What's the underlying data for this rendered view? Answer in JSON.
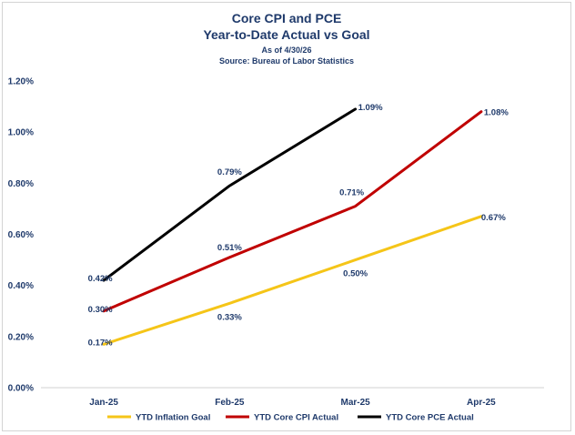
{
  "chart_data": {
    "type": "line",
    "title": "Core CPI and PCE",
    "subtitle": "Year-to-Date Actual vs Goal",
    "note_lines": [
      "As of 4/30/26",
      "Source: Bureau of Labor Statistics"
    ],
    "categories": [
      "Jan-25",
      "Feb-25",
      "Mar-25",
      "Apr-25"
    ],
    "ylim": [
      0,
      1.2
    ],
    "yticks": [
      0.0,
      0.2,
      0.4,
      0.6,
      0.8,
      1.0,
      1.2
    ],
    "ytick_labels": [
      "0.00%",
      "0.20%",
      "0.40%",
      "0.60%",
      "0.80%",
      "1.00%",
      "1.20%"
    ],
    "grid": false,
    "legend_position": "bottom",
    "series": [
      {
        "name": "YTD Inflation Goal",
        "color": "#f5c518",
        "values": [
          0.17,
          0.33,
          0.5,
          0.67
        ],
        "labels": [
          "0.17%",
          "0.33%",
          "0.50%",
          "0.67%"
        ]
      },
      {
        "name": "YTD Core CPI Actual",
        "color": "#c00000",
        "values": [
          0.3,
          0.51,
          0.71,
          1.08
        ],
        "labels": [
          "0.30%",
          "0.51%",
          "0.71%",
          "1.08%"
        ]
      },
      {
        "name": "YTD Core PCE Actual",
        "color": "#000000",
        "values": [
          0.42,
          0.79,
          1.09,
          null
        ],
        "labels": [
          "0.42%",
          "0.79%",
          "1.09%",
          null
        ]
      }
    ]
  }
}
